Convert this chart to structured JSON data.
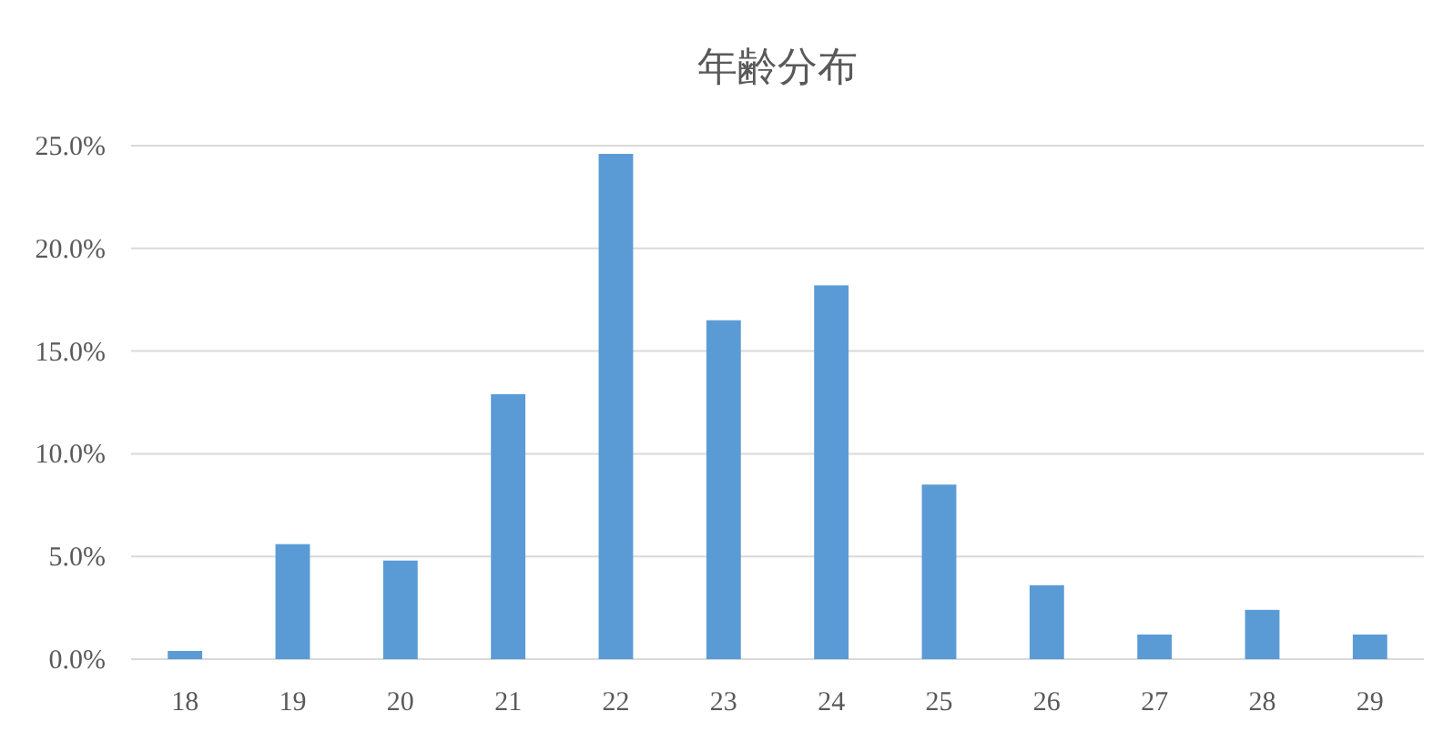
{
  "chart_data": {
    "type": "bar",
    "title": "年齢分布",
    "categories": [
      "18",
      "19",
      "20",
      "21",
      "22",
      "23",
      "24",
      "25",
      "26",
      "27",
      "28",
      "29"
    ],
    "values": [
      0.4,
      5.6,
      4.8,
      12.9,
      24.6,
      16.5,
      18.2,
      8.5,
      3.6,
      1.2,
      2.4,
      1.2
    ],
    "color": "#5b9bd5",
    "ylim": [
      0,
      25
    ],
    "yticks": [
      {
        "value": 0,
        "label": "0.0%"
      },
      {
        "value": 5,
        "label": "5.0%"
      },
      {
        "value": 10,
        "label": "10.0%"
      },
      {
        "value": 15,
        "label": "15.0%"
      },
      {
        "value": 20,
        "label": "20.0%"
      },
      {
        "value": 25,
        "label": "25.0%"
      }
    ],
    "grid": "y"
  }
}
